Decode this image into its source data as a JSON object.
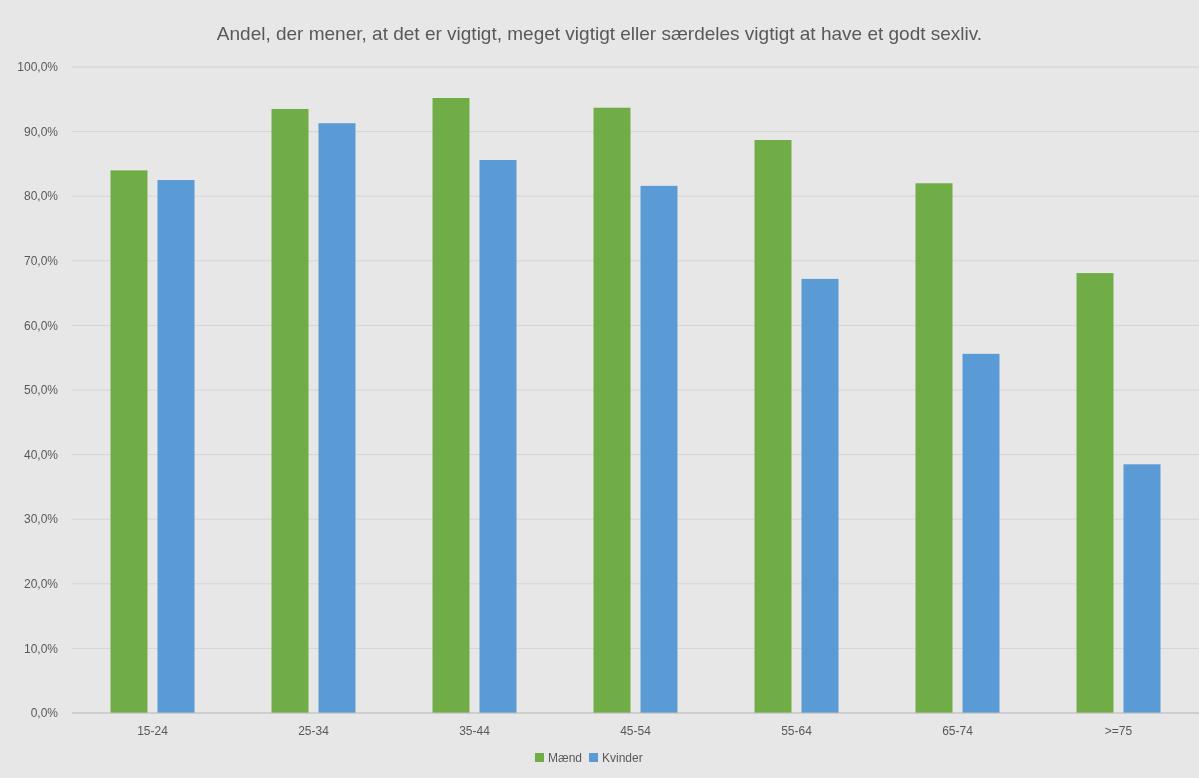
{
  "chart_data": {
    "type": "bar",
    "title": "Andel, der mener, at det er vigtigt, meget vigtigt eller særdeles vigtigt at have et godt sexliv.",
    "categories": [
      "15-24",
      "25-34",
      "35-44",
      "45-54",
      "55-64",
      "65-74",
      ">=75"
    ],
    "series": [
      {
        "name": "Mænd",
        "color": "#70ad47",
        "values": [
          84.0,
          93.5,
          95.2,
          93.7,
          88.7,
          82.0,
          68.1
        ]
      },
      {
        "name": "Kvinder",
        "color": "#5b9bd5",
        "values": [
          82.5,
          91.3,
          85.6,
          81.6,
          67.2,
          55.6,
          38.5
        ]
      }
    ],
    "ylim": [
      0,
      100
    ],
    "yticks": [
      {
        "value": 0,
        "label": "0,0%"
      },
      {
        "value": 10,
        "label": "10,0%"
      },
      {
        "value": 20,
        "label": "20,0%"
      },
      {
        "value": 30,
        "label": "30,0%"
      },
      {
        "value": 40,
        "label": "40,0%"
      },
      {
        "value": 50,
        "label": "50,0%"
      },
      {
        "value": 60,
        "label": "60,0%"
      },
      {
        "value": 70,
        "label": "70,0%"
      },
      {
        "value": 80,
        "label": "80,0%"
      },
      {
        "value": 90,
        "label": "90,0%"
      },
      {
        "value": 100,
        "label": "100,0%"
      }
    ],
    "grid": "y",
    "legend": "bottom"
  }
}
